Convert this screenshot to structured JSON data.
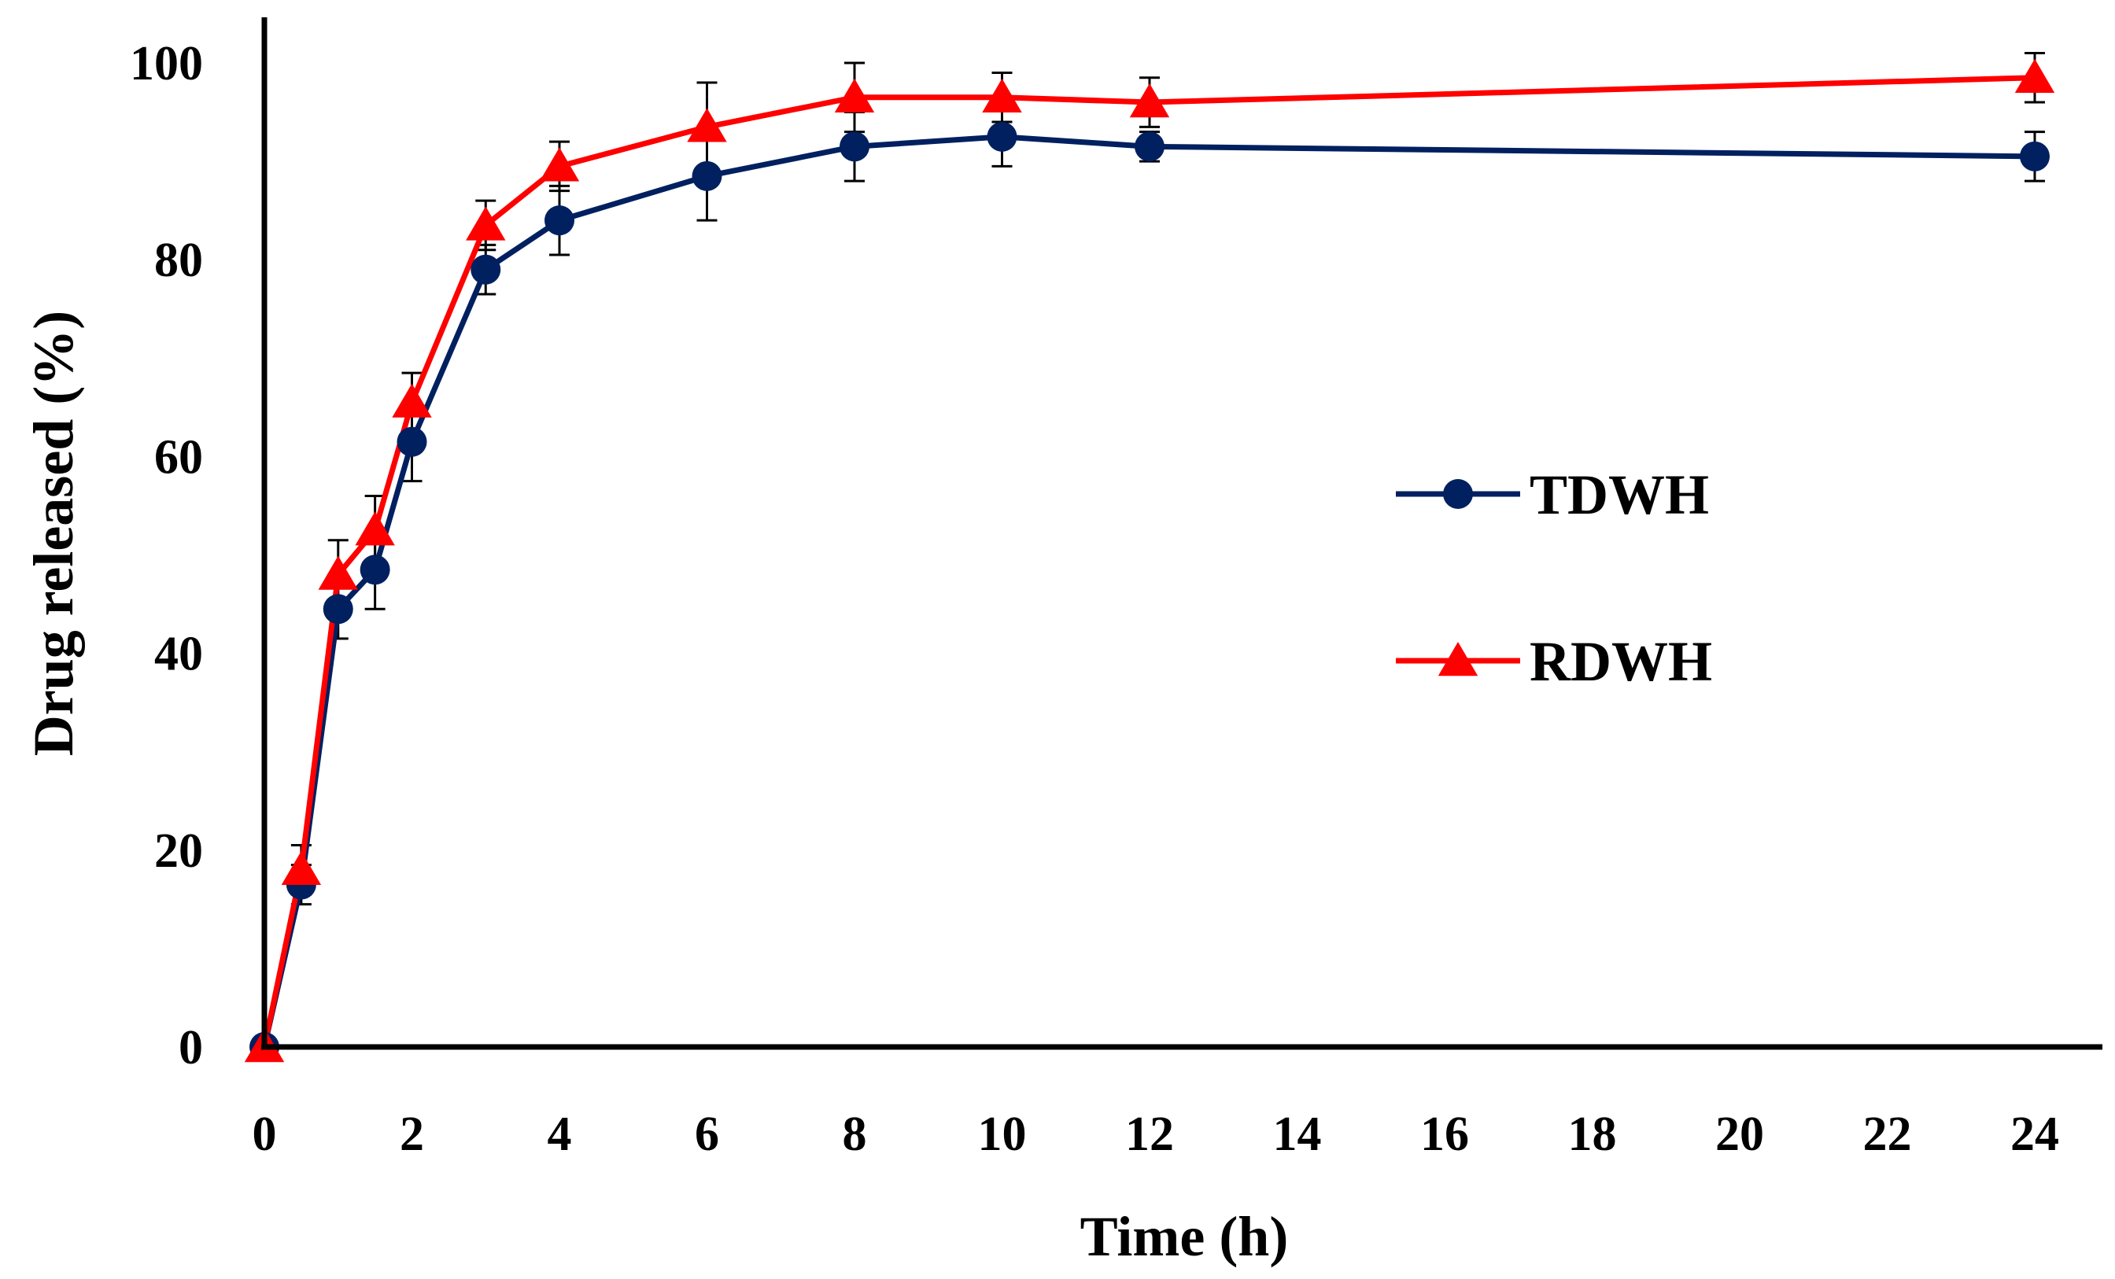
{
  "chart_data": {
    "type": "line",
    "title": "",
    "xlabel": "Time (h)",
    "ylabel": "Drug released (%)",
    "xlim": [
      0,
      24
    ],
    "ylim": [
      0,
      100
    ],
    "x_ticks": [
      "0",
      "2",
      "4",
      "6",
      "8",
      "10",
      "12",
      "14",
      "16",
      "18",
      "20",
      "22",
      "24"
    ],
    "y_ticks": [
      "0",
      "20",
      "40",
      "60",
      "80",
      "100"
    ],
    "grid": false,
    "legend_position": "right",
    "series": [
      {
        "name": "TDWH",
        "color": "#002060",
        "marker": "circle",
        "x": [
          0,
          0.5,
          1,
          1.5,
          2,
          3,
          4,
          6,
          8,
          10,
          12,
          24
        ],
        "y": [
          0,
          16.5,
          44.5,
          48.5,
          61.5,
          79,
          84,
          88.5,
          91.5,
          92.5,
          91.5,
          90.5
        ],
        "error": [
          0,
          2.0,
          3.0,
          4.0,
          4.0,
          2.5,
          3.5,
          4.5,
          3.5,
          3.0,
          1.5,
          2.5
        ]
      },
      {
        "name": "RDWH",
        "color": "#ff0000",
        "marker": "triangle",
        "x": [
          0,
          0.5,
          1,
          1.5,
          2,
          3,
          4,
          6,
          8,
          10,
          12,
          24
        ],
        "y": [
          0,
          18,
          48,
          52.5,
          65.5,
          83.5,
          89.5,
          93.5,
          96.5,
          96.5,
          96,
          98.5
        ],
        "error": [
          0,
          2.5,
          3.5,
          3.5,
          3.0,
          2.5,
          2.5,
          4.5,
          3.5,
          2.5,
          2.5,
          2.5
        ]
      }
    ]
  }
}
